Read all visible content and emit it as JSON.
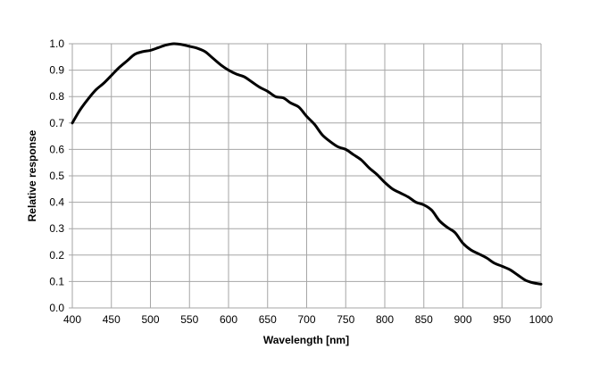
{
  "chart_data": {
    "type": "line",
    "title": "",
    "xlabel": "Wavelength [nm]",
    "ylabel": "Relative response",
    "xlim": [
      400,
      1000
    ],
    "ylim": [
      0,
      1.0
    ],
    "grid": true,
    "xticks": [
      400,
      450,
      500,
      550,
      600,
      650,
      700,
      750,
      800,
      850,
      900,
      950,
      1000
    ],
    "yticks": [
      "0.0",
      "0.1",
      "0.2",
      "0.3",
      "0.4",
      "0.5",
      "0.6",
      "0.7",
      "0.8",
      "0.9",
      "1.0"
    ],
    "line_color": "#000000",
    "grid_color": "#a6a6a6",
    "series": [
      {
        "x": [
          400,
          410,
          420,
          430,
          440,
          450,
          460,
          470,
          480,
          490,
          500,
          510,
          520,
          530,
          540,
          550,
          560,
          570,
          580,
          590,
          600,
          610,
          620,
          630,
          640,
          650,
          660,
          670,
          680,
          690,
          700,
          710,
          720,
          730,
          740,
          750,
          760,
          770,
          780,
          790,
          800,
          810,
          820,
          830,
          840,
          850,
          860,
          870,
          880,
          890,
          900,
          910,
          920,
          930,
          940,
          950,
          960,
          970,
          980,
          990,
          1000
        ],
        "y": [
          0.7,
          0.75,
          0.79,
          0.825,
          0.85,
          0.88,
          0.91,
          0.935,
          0.96,
          0.97,
          0.975,
          0.985,
          0.995,
          1.0,
          0.997,
          0.99,
          0.983,
          0.97,
          0.945,
          0.92,
          0.9,
          0.885,
          0.875,
          0.855,
          0.835,
          0.82,
          0.8,
          0.795,
          0.775,
          0.76,
          0.725,
          0.695,
          0.655,
          0.63,
          0.61,
          0.6,
          0.58,
          0.56,
          0.53,
          0.505,
          0.475,
          0.45,
          0.435,
          0.42,
          0.4,
          0.39,
          0.37,
          0.33,
          0.305,
          0.285,
          0.245,
          0.22,
          0.205,
          0.19,
          0.17,
          0.158,
          0.145,
          0.125,
          0.105,
          0.095,
          0.09
        ]
      }
    ]
  }
}
